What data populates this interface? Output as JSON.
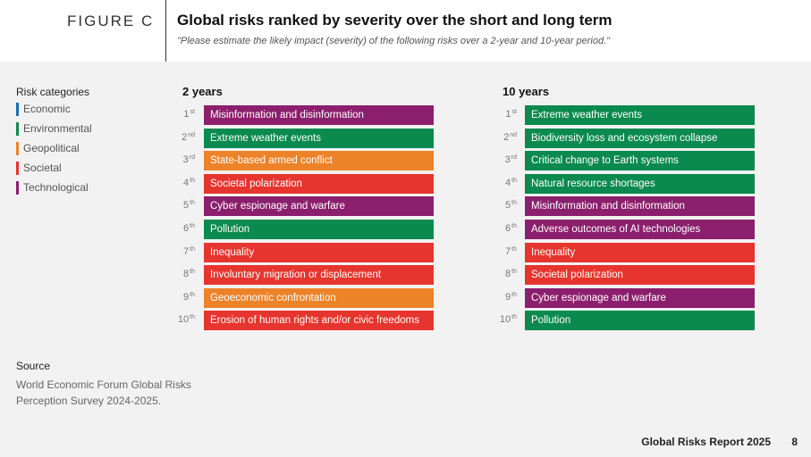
{
  "header": {
    "figure_label": "FIGURE C",
    "title": "Global risks ranked by severity over the short and long term",
    "subtitle": "\"Please estimate the likely impact (severity) of the following risks over a 2-year and 10-year period.\""
  },
  "colors": {
    "Economic": "#1a6fb0",
    "Environmental": "#0a8a4e",
    "Geopolitical": "#ec8329",
    "Societal": "#e6352e",
    "Technological": "#8c1f6d"
  },
  "legend": {
    "title": "Risk categories",
    "items": [
      {
        "label": "Economic",
        "category": "Economic"
      },
      {
        "label": "Environmental",
        "category": "Environmental"
      },
      {
        "label": "Geopolitical",
        "category": "Geopolitical"
      },
      {
        "label": "Societal",
        "category": "Societal"
      },
      {
        "label": "Technological",
        "category": "Technological"
      }
    ]
  },
  "columns": [
    {
      "title": "2 years",
      "rows": [
        {
          "rank": "1",
          "suffix": "st",
          "label": "Misinformation and disinformation",
          "category": "Technological"
        },
        {
          "rank": "2",
          "suffix": "nd",
          "label": "Extreme weather events",
          "category": "Environmental"
        },
        {
          "rank": "3",
          "suffix": "rd",
          "label": "State-based armed conflict",
          "category": "Geopolitical"
        },
        {
          "rank": "4",
          "suffix": "th",
          "label": "Societal polarization",
          "category": "Societal"
        },
        {
          "rank": "5",
          "suffix": "th",
          "label": "Cyber espionage and warfare",
          "category": "Technological"
        },
        {
          "rank": "6",
          "suffix": "th",
          "label": "Pollution",
          "category": "Environmental"
        },
        {
          "rank": "7",
          "suffix": "th",
          "label": "Inequality",
          "category": "Societal"
        },
        {
          "rank": "8",
          "suffix": "th",
          "label": "Involuntary migration or displacement",
          "category": "Societal"
        },
        {
          "rank": "9",
          "suffix": "th",
          "label": "Geoeconomic confrontation",
          "category": "Geopolitical"
        },
        {
          "rank": "10",
          "suffix": "th",
          "label": "Erosion of human rights and/or civic freedoms",
          "category": "Societal"
        }
      ]
    },
    {
      "title": "10 years",
      "rows": [
        {
          "rank": "1",
          "suffix": "st",
          "label": "Extreme weather events",
          "category": "Environmental"
        },
        {
          "rank": "2",
          "suffix": "nd",
          "label": "Biodiversity loss and ecosystem collapse",
          "category": "Environmental"
        },
        {
          "rank": "3",
          "suffix": "rd",
          "label": "Critical change to Earth systems",
          "category": "Environmental"
        },
        {
          "rank": "4",
          "suffix": "th",
          "label": "Natural resource shortages",
          "category": "Environmental"
        },
        {
          "rank": "5",
          "suffix": "th",
          "label": "Misinformation and disinformation",
          "category": "Technological"
        },
        {
          "rank": "6",
          "suffix": "th",
          "label": "Adverse outcomes of AI technologies",
          "category": "Technological"
        },
        {
          "rank": "7",
          "suffix": "th",
          "label": "Inequality",
          "category": "Societal"
        },
        {
          "rank": "8",
          "suffix": "th",
          "label": "Societal polarization",
          "category": "Societal"
        },
        {
          "rank": "9",
          "suffix": "th",
          "label": "Cyber espionage and warfare",
          "category": "Technological"
        },
        {
          "rank": "10",
          "suffix": "th",
          "label": "Pollution",
          "category": "Environmental"
        }
      ]
    }
  ],
  "source": {
    "title": "Source",
    "text": "World Economic Forum Global Risks Perception Survey 2024-2025."
  },
  "footer": {
    "report": "Global Risks Report 2025",
    "page": "8"
  }
}
